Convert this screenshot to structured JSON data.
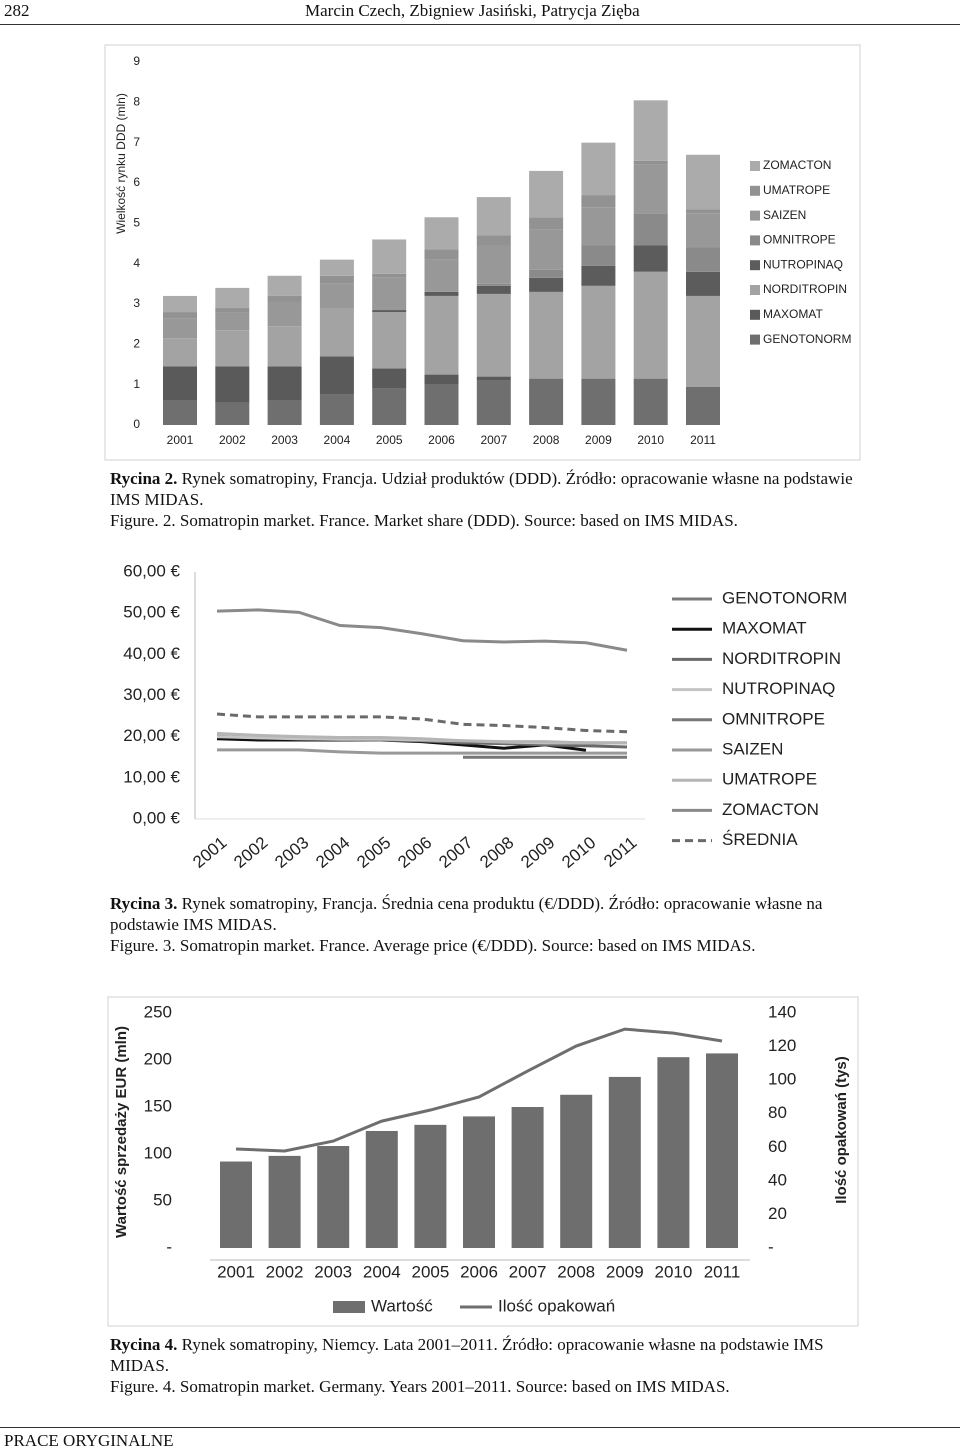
{
  "header": {
    "page_number": "282",
    "authors": "Marcin Czech, Zbigniew Jasiński, Patrycja Zięba"
  },
  "chart_data": [
    {
      "type": "bar",
      "stacked": true,
      "y_label": "Wielkość rynku DDD (mln)",
      "categories": [
        "2001",
        "2002",
        "2003",
        "2004",
        "2005",
        "2006",
        "2007",
        "2008",
        "2009",
        "2010",
        "2011"
      ],
      "ylim": [
        0,
        9
      ],
      "yticks": [
        0,
        1,
        2,
        3,
        4,
        5,
        6,
        7,
        8,
        9
      ],
      "grid": false,
      "series": [
        {
          "name": "GENOTONORM",
          "color": "#6f6f6f",
          "values": [
            0.6,
            0.55,
            0.6,
            0.75,
            0.9,
            1.0,
            1.1,
            1.15,
            1.15,
            1.15,
            0.95
          ]
        },
        {
          "name": "MAXOMAT",
          "color": "#5a5a5a",
          "values": [
            0.85,
            0.9,
            0.85,
            0.95,
            0.5,
            0.25,
            0.1,
            0,
            0,
            0,
            0
          ]
        },
        {
          "name": "NORDITROPIN",
          "color": "#a3a3a3",
          "values": [
            0.7,
            0.9,
            1.0,
            1.2,
            1.4,
            1.95,
            2.05,
            2.15,
            2.3,
            2.65,
            2.25
          ]
        },
        {
          "name": "NUTROPINAQ",
          "color": "#5c5c5c",
          "values": [
            0,
            0,
            0,
            0,
            0.05,
            0.1,
            0.2,
            0.35,
            0.5,
            0.65,
            0.6
          ]
        },
        {
          "name": "OMNITROPE",
          "color": "#8a8a8a",
          "values": [
            0,
            0,
            0,
            0,
            0,
            0,
            0.05,
            0.2,
            0.5,
            0.8,
            0.6
          ]
        },
        {
          "name": "SAIZEN",
          "color": "#989898",
          "values": [
            0.5,
            0.45,
            0.6,
            0.6,
            0.8,
            0.8,
            0.95,
            1.0,
            0.95,
            1.2,
            0.85
          ]
        },
        {
          "name": "UMATROPE",
          "color": "#929292",
          "values": [
            0.15,
            0.1,
            0.15,
            0.2,
            0.1,
            0.25,
            0.25,
            0.3,
            0.3,
            0.1,
            0.1
          ]
        },
        {
          "name": "ZOMACTON",
          "color": "#ababab",
          "values": [
            0.4,
            0.5,
            0.5,
            0.4,
            0.85,
            0.8,
            0.95,
            1.15,
            1.3,
            1.5,
            1.35
          ]
        }
      ]
    },
    {
      "type": "line",
      "categories": [
        "2001",
        "2002",
        "2003",
        "2004",
        "2005",
        "2006",
        "2007",
        "2008",
        "2009",
        "2010",
        "2011"
      ],
      "ylim": [
        0,
        60
      ],
      "yticks": [
        {
          "value": 0,
          "label": "0,00 €"
        },
        {
          "value": 10,
          "label": "10,00 €"
        },
        {
          "value": 20,
          "label": "20,00 €"
        },
        {
          "value": 30,
          "label": "30,00 €"
        },
        {
          "value": 40,
          "label": "40,00 €"
        },
        {
          "value": 50,
          "label": "50,00 €"
        },
        {
          "value": 60,
          "label": "60,00 €"
        }
      ],
      "grid": false,
      "series": [
        {
          "name": "GENOTONORM",
          "color": "#7a7a7a",
          "style": "solid",
          "values": [
            20.5,
            20,
            19.8,
            19.5,
            19.3,
            19,
            18.8,
            18.7,
            18.6,
            18.5,
            18.5
          ]
        },
        {
          "name": "MAXOMAT",
          "color": "#111111",
          "style": "solid",
          "values": [
            19.5,
            19.2,
            19.2,
            19.2,
            19.2,
            18.8,
            18,
            17.2,
            18,
            16.7,
            null
          ]
        },
        {
          "name": "NORDITROPIN",
          "color": "#6a6a6a",
          "style": "solid",
          "values": [
            20,
            19.8,
            19.5,
            19.3,
            19.2,
            19,
            18.5,
            18.3,
            18,
            17.8,
            17.5
          ]
        },
        {
          "name": "NUTROPINAQ",
          "color": "#c4c4c4",
          "style": "solid",
          "values": [
            20,
            19.7,
            19.5,
            19.4,
            19.4,
            19.2,
            19,
            18.7,
            18.5,
            18.5,
            18.5
          ]
        },
        {
          "name": "OMNITROPE",
          "color": "#767676",
          "style": "solid",
          "values": [
            null,
            null,
            null,
            null,
            null,
            null,
            15,
            15,
            15,
            15,
            15
          ]
        },
        {
          "name": "SAIZEN",
          "color": "#999999",
          "style": "solid",
          "values": [
            16.8,
            16.8,
            16.8,
            16.3,
            16,
            16,
            16,
            16,
            16,
            16,
            16
          ]
        },
        {
          "name": "UMATROPE",
          "color": "#b5b5b5",
          "style": "solid",
          "values": [
            20.8,
            20.3,
            20,
            19.8,
            19.8,
            19.5,
            19,
            18.8,
            18.8,
            18.5,
            18.5
          ]
        },
        {
          "name": "ZOMACTON",
          "color": "#8a8a8a",
          "style": "solid",
          "values": [
            50.5,
            50.8,
            50.2,
            47,
            46.5,
            45,
            43.3,
            43,
            43.2,
            42.8,
            41
          ]
        },
        {
          "name": "ŚREDNIA",
          "color": "#6a6a6a",
          "style": "dashed",
          "values": [
            25.5,
            24.8,
            24.8,
            24.8,
            24.8,
            24.3,
            23,
            22.7,
            22.2,
            21.5,
            21.2
          ]
        }
      ]
    },
    {
      "type": "combo",
      "y_label": "Wartość sprzedaży EUR (mln)",
      "y2_label": "Ilość opakowań (tys)",
      "categories": [
        "2001",
        "2002",
        "2003",
        "2004",
        "2005",
        "2006",
        "2007",
        "2008",
        "2009",
        "2010",
        "2011"
      ],
      "ylim": [
        0,
        250
      ],
      "yticks": [
        {
          "value": 0,
          "label": "-"
        },
        50,
        100,
        150,
        200,
        250
      ],
      "y2lim": [
        0,
        140
      ],
      "y2ticks": [
        {
          "value": 0,
          "label": "-"
        },
        20,
        40,
        60,
        80,
        100,
        120,
        140
      ],
      "grid": false,
      "series": [
        {
          "name": "Wartość",
          "type": "bar",
          "color": "#6e6e6e",
          "values": [
            92,
            98,
            108.5,
            124.5,
            131,
            140,
            150,
            163,
            182,
            203,
            207
          ]
        },
        {
          "name": "Ilość opakowań",
          "type": "line",
          "axis": "y2",
          "color": "#6e6e6e",
          "values": [
            59,
            57.8,
            63.7,
            75.6,
            82.2,
            90,
            105.4,
            120.3,
            130.4,
            128,
            123.3
          ]
        }
      ]
    }
  ],
  "captions": [
    {
      "label": "Rycina 2.",
      "text": "Rynek somatropiny, Francja. Udział produktów (DDD). Źródło: opracowanie własne na podstawie IMS MIDAS.",
      "english": "Figure. 2. Somatropin market. France. Market share (DDD). Source: based on IMS MIDAS."
    },
    {
      "label": "Rycina 3.",
      "text": "Rynek somatropiny, Francja. Średnia cena produktu (€/DDD). Źródło: opracowanie własne na podstawie IMS MIDAS.",
      "english": "Figure. 3. Somatropin market. France. Average price (€/DDD). Source: based on IMS MIDAS."
    },
    {
      "label": "Rycina 4.",
      "text": "Rynek somatropiny, Niemcy. Lata 2001–2011. Źródło: opracowanie własne na podstawie IMS MIDAS.",
      "english": "Figure. 4. Somatropin market. Germany. Years 2001–2011. Source: based on IMS MIDAS."
    }
  ],
  "footer": {
    "section": "PRACE ORYGINALNE"
  }
}
